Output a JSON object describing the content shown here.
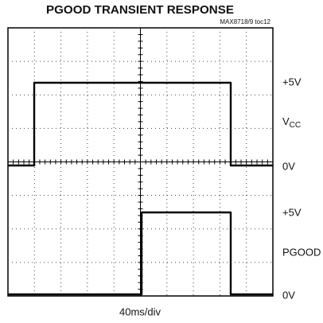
{
  "header": {
    "title": "PGOOD TRANSIENT RESPONSE",
    "subtitle": "MAX8718/9 toc12"
  },
  "channels": [
    {
      "high_label": "+5V",
      "name": "V",
      "name_sub": "CC",
      "low_label": "0V"
    },
    {
      "high_label": "+5V",
      "name": "PGOOD",
      "low_label": "0V"
    }
  ],
  "footer": {
    "timebase": "40ms/div"
  }
}
